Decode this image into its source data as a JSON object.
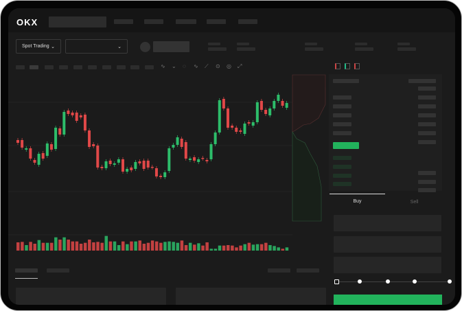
{
  "header": {
    "logo": "OKX"
  },
  "toolbar": {
    "market_type": "Spot Trading"
  },
  "trade_panel": {
    "tabs": [
      "Buy",
      "Sell"
    ],
    "active_tab": "Buy",
    "slider_level_percent": 0
  },
  "colors": {
    "up": "#2dbd6a",
    "down": "#e04848",
    "background": "#1b1b1b",
    "accent": "#22b35c"
  },
  "chart_data": {
    "type": "candlestick",
    "candles": [
      [
        97,
        93
      ],
      [
        97,
        86
      ],
      [
        83,
        85
      ],
      [
        85,
        70
      ],
      [
        68,
        64
      ],
      [
        61,
        77
      ],
      [
        78,
        70
      ],
      [
        74,
        92
      ],
      [
        91,
        83
      ],
      [
        84,
        115
      ],
      [
        114,
        105
      ],
      [
        105,
        138
      ],
      [
        140,
        135
      ],
      [
        137,
        133
      ],
      [
        137,
        125
      ],
      [
        133,
        130
      ],
      [
        134,
        111
      ],
      [
        111,
        87
      ],
      [
        91,
        88
      ],
      [
        89,
        57
      ],
      [
        58,
        56
      ],
      [
        56,
        66
      ],
      [
        67,
        62
      ],
      [
        61,
        63
      ],
      [
        64,
        69
      ],
      [
        69,
        51
      ],
      [
        51,
        55
      ],
      [
        57,
        53
      ],
      [
        55,
        65
      ],
      [
        66,
        63
      ],
      [
        67,
        55
      ],
      [
        67,
        57
      ],
      [
        58,
        57
      ],
      [
        56,
        44
      ],
      [
        45,
        43
      ],
      [
        43,
        50
      ],
      [
        52,
        85
      ],
      [
        86,
        90
      ],
      [
        90,
        101
      ],
      [
        99,
        87
      ],
      [
        94,
        70
      ],
      [
        68,
        70
      ],
      [
        72,
        67
      ],
      [
        65,
        69
      ],
      [
        71,
        70
      ],
      [
        68,
        66
      ],
      [
        69,
        91
      ],
      [
        91,
        108
      ],
      [
        108,
        155
      ],
      [
        157,
        143
      ],
      [
        143,
        115
      ],
      [
        118,
        115
      ],
      [
        115,
        109
      ],
      [
        111,
        109
      ],
      [
        106,
        121
      ],
      [
        123,
        121
      ],
      [
        118,
        123
      ],
      [
        123,
        152
      ],
      [
        154,
        141
      ],
      [
        141,
        135
      ],
      [
        133,
        143
      ],
      [
        143,
        154
      ],
      [
        154,
        163
      ],
      [
        154,
        147
      ],
      [
        144,
        151
      ]
    ],
    "volumes": [
      36,
      38,
      24,
      38,
      30,
      46,
      34,
      34,
      34,
      58,
      48,
      58,
      48,
      40,
      40,
      30,
      34,
      48,
      36,
      38,
      34,
      64,
      40,
      40,
      24,
      40,
      28,
      40,
      40,
      44,
      30,
      34,
      44,
      40,
      34,
      38,
      40,
      38,
      34,
      44,
      24,
      34,
      26,
      32,
      22,
      36,
      8,
      8,
      22,
      22,
      24,
      22,
      14,
      22,
      28,
      34,
      26,
      28,
      28,
      34,
      24,
      20,
      14,
      8,
      14
    ]
  }
}
